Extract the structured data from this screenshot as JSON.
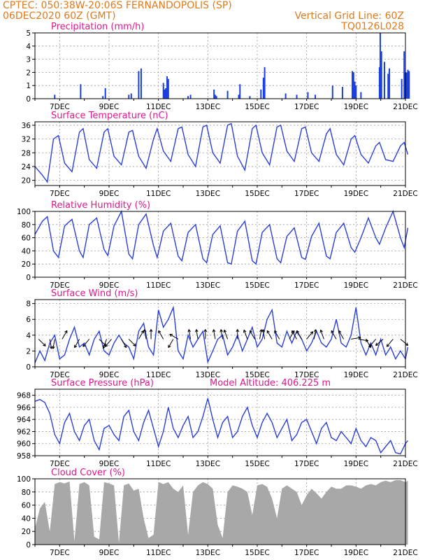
{
  "header": {
    "line1": "CPTEC:   050:38W-20:06S   FERNANDOPOLIS (SP)",
    "line2_left": "06DEC2020 60Z (GMT)",
    "line2_right": "Vertical Grid Line: 60Z",
    "line3_right": "TQ0126L028"
  },
  "x_axis": {
    "start_day": 6,
    "end_day": 21,
    "tick_labels": [
      "7DEC",
      "9DEC",
      "11DEC",
      "13DEC",
      "15DEC",
      "17DEC",
      "19DEC",
      "21DEC"
    ],
    "tick_days": [
      7,
      9,
      11,
      13,
      15,
      17,
      19,
      21
    ]
  },
  "colors": {
    "line": "#2b3fd6",
    "bar": "#1a3fe0",
    "cloud": "#a8a8a8",
    "title": "#e0188c",
    "header": "#e07a1c"
  },
  "chart_data": [
    {
      "key": "precip",
      "type": "bar",
      "title": "Precipitation (mm/h)",
      "ylim": [
        0,
        5
      ],
      "yticks": [
        0,
        1,
        2,
        3,
        4,
        5
      ],
      "grid": true,
      "x_day": [
        6.8,
        7.85,
        8.75,
        8.85,
        9.8,
        9.9,
        10.2,
        10.3,
        11.2,
        11.25,
        11.3,
        11.35,
        11.4,
        12.2,
        12.3,
        13.25,
        13.3,
        13.35,
        13.8,
        14.25,
        14.3,
        14.7,
        15.15,
        15.25,
        15.3,
        16.15,
        16.6,
        17.05,
        17.35,
        18.05,
        18.45,
        18.85,
        18.9,
        18.95,
        19.0,
        19.2,
        19.95,
        19.98,
        20.03,
        20.15,
        20.3,
        20.35,
        20.85,
        20.95,
        21.0,
        21.05,
        21.1,
        21.15
      ],
      "values": [
        0.3,
        1.1,
        0.2,
        0.8,
        0.3,
        0.4,
        2.1,
        2.3,
        1.2,
        0.7,
        0.8,
        1.7,
        1.5,
        0.2,
        0.3,
        0.7,
        0.3,
        0.2,
        0.6,
        0.3,
        1.1,
        0.2,
        0.7,
        1.6,
        2.4,
        0.4,
        0.3,
        0.5,
        0.3,
        1.0,
        0.9,
        2.1,
        2.0,
        1.3,
        1.0,
        0.5,
        2.4,
        5.0,
        3.6,
        2.8,
        1.9,
        2.3,
        1.5,
        3.6,
        2.0,
        2.0,
        2.2,
        2.1
      ]
    },
    {
      "key": "temp",
      "type": "line",
      "title": "Surface Temperature (nC)",
      "ylim": [
        18.5,
        37
      ],
      "yticks": [
        20,
        24,
        28,
        32,
        36
      ],
      "grid": true,
      "x_day": [
        6.0,
        6.3,
        6.5,
        6.75,
        6.95,
        7.2,
        7.5,
        7.8,
        7.95,
        8.2,
        8.5,
        8.8,
        8.95,
        9.2,
        9.5,
        9.8,
        9.95,
        10.2,
        10.5,
        10.8,
        10.95,
        11.2,
        11.5,
        11.8,
        11.95,
        12.2,
        12.5,
        12.8,
        12.95,
        13.2,
        13.5,
        13.8,
        13.95,
        14.2,
        14.5,
        14.8,
        14.95,
        15.2,
        15.5,
        15.8,
        15.95,
        16.2,
        16.5,
        16.8,
        16.95,
        17.2,
        17.5,
        17.8,
        17.95,
        18.2,
        18.5,
        18.8,
        18.95,
        19.2,
        19.5,
        19.8,
        19.95,
        20.2,
        20.5,
        20.8,
        20.95,
        21.1
      ],
      "values": [
        24.0,
        21.5,
        19.5,
        32.0,
        33.0,
        25.0,
        22.5,
        34.0,
        35.0,
        26.0,
        23.5,
        34.0,
        35.0,
        27.0,
        24.5,
        34.0,
        34.5,
        27.0,
        23.5,
        32.0,
        35.0,
        28.5,
        25.5,
        35.0,
        35.5,
        27.5,
        24.0,
        35.5,
        36.0,
        28.0,
        25.0,
        36.0,
        36.5,
        27.0,
        23.0,
        35.0,
        36.0,
        28.0,
        24.5,
        35.5,
        36.0,
        28.5,
        25.5,
        35.0,
        35.5,
        28.0,
        25.5,
        33.5,
        35.0,
        27.5,
        24.5,
        32.0,
        33.0,
        27.5,
        25.0,
        30.0,
        31.0,
        26.0,
        25.5,
        30.0,
        31.0,
        27.5
      ]
    },
    {
      "key": "rh",
      "type": "line",
      "title": "Relative Humidity (%)",
      "ylim": [
        0,
        100
      ],
      "yticks": [
        0,
        20,
        40,
        60,
        80,
        100
      ],
      "grid": true,
      "x_day": [
        6.0,
        6.3,
        6.5,
        6.75,
        6.95,
        7.2,
        7.5,
        7.8,
        7.95,
        8.2,
        8.5,
        8.8,
        8.95,
        9.2,
        9.5,
        9.8,
        9.95,
        10.2,
        10.5,
        10.8,
        10.95,
        11.2,
        11.5,
        11.8,
        11.95,
        12.2,
        12.5,
        12.8,
        12.95,
        13.2,
        13.5,
        13.8,
        13.95,
        14.2,
        14.5,
        14.8,
        14.95,
        15.2,
        15.5,
        15.8,
        15.95,
        16.2,
        16.5,
        16.8,
        16.95,
        17.2,
        17.5,
        17.8,
        17.95,
        18.2,
        18.5,
        18.8,
        18.95,
        19.2,
        19.5,
        19.8,
        19.95,
        20.2,
        20.5,
        20.8,
        20.95,
        21.1
      ],
      "values": [
        65.0,
        85.0,
        92.0,
        40.0,
        30.0,
        78.0,
        88.0,
        40.0,
        30.0,
        80.0,
        90.0,
        42.0,
        33.0,
        78.0,
        100.0,
        35.0,
        28.0,
        80.0,
        96.0,
        48.0,
        30.0,
        70.0,
        82.0,
        32.0,
        25.0,
        68.0,
        80.0,
        28.0,
        22.0,
        65.0,
        78.0,
        22.0,
        20.0,
        70.0,
        85.0,
        25.0,
        20.0,
        68.0,
        80.0,
        28.0,
        22.0,
        62.0,
        75.0,
        30.0,
        27.0,
        62.0,
        82.0,
        32.0,
        28.0,
        68.0,
        82.0,
        45.0,
        38.0,
        60.0,
        90.0,
        60.0,
        50.0,
        75.0,
        100.0,
        60.0,
        45.0,
        75.0
      ]
    },
    {
      "key": "wind",
      "type": "line",
      "title": "Surface Wind (m/s)",
      "ylim": [
        0,
        8.5
      ],
      "yticks": [
        0,
        2,
        4,
        6,
        8
      ],
      "grid": true,
      "x_day": [
        6.0,
        6.2,
        6.4,
        6.6,
        6.8,
        7.0,
        7.2,
        7.4,
        7.6,
        7.8,
        8.0,
        8.2,
        8.4,
        8.6,
        8.8,
        9.0,
        9.2,
        9.4,
        9.6,
        9.8,
        10.0,
        10.2,
        10.4,
        10.6,
        10.8,
        11.0,
        11.2,
        11.4,
        11.6,
        11.8,
        12.0,
        12.2,
        12.4,
        12.6,
        12.8,
        13.0,
        13.2,
        13.4,
        13.6,
        13.8,
        14.0,
        14.2,
        14.4,
        14.6,
        14.8,
        15.0,
        15.2,
        15.4,
        15.6,
        15.8,
        16.0,
        16.2,
        16.4,
        16.6,
        16.8,
        17.0,
        17.2,
        17.4,
        17.6,
        17.8,
        18.0,
        18.2,
        18.4,
        18.6,
        18.8,
        19.0,
        19.2,
        19.4,
        19.6,
        19.8,
        20.0,
        20.2,
        20.4,
        20.6,
        20.8,
        21.0,
        21.1
      ],
      "values": [
        0.5,
        2.0,
        0.8,
        3.0,
        4.0,
        1.0,
        1.5,
        3.5,
        5.0,
        2.5,
        3.0,
        1.5,
        3.5,
        4.5,
        2.0,
        1.5,
        3.0,
        4.0,
        3.0,
        2.5,
        1.0,
        4.5,
        5.5,
        2.5,
        1.5,
        7.2,
        5.0,
        6.0,
        7.5,
        2.0,
        1.0,
        4.0,
        2.5,
        3.5,
        4.5,
        0.6,
        2.0,
        3.5,
        4.0,
        1.5,
        2.5,
        4.0,
        2.0,
        3.5,
        5.0,
        2.5,
        3.5,
        6.0,
        7.2,
        3.0,
        2.5,
        4.5,
        3.0,
        4.5,
        3.5,
        2.0,
        3.0,
        4.5,
        3.0,
        2.5,
        3.5,
        6.0,
        3.0,
        2.5,
        4.0,
        7.5,
        3.0,
        1.5,
        3.0,
        1.5,
        3.5,
        1.5,
        2.5,
        1.0,
        2.0,
        1.0,
        2.5
      ]
    },
    {
      "key": "pressure",
      "type": "line",
      "title": "Surface Pressure (hPa)",
      "annotation": "Model Altitude: 406.225 m",
      "ylim": [
        958,
        969
      ],
      "yticks": [
        958,
        960,
        962,
        964,
        966,
        968
      ],
      "grid": true,
      "x_day": [
        6.0,
        6.2,
        6.4,
        6.6,
        6.8,
        7.0,
        7.2,
        7.4,
        7.6,
        7.8,
        8.0,
        8.2,
        8.4,
        8.6,
        8.8,
        9.0,
        9.2,
        9.4,
        9.6,
        9.8,
        10.0,
        10.2,
        10.4,
        10.6,
        10.8,
        11.0,
        11.2,
        11.4,
        11.6,
        11.8,
        12.0,
        12.2,
        12.4,
        12.6,
        12.8,
        13.0,
        13.2,
        13.4,
        13.6,
        13.8,
        14.0,
        14.2,
        14.4,
        14.6,
        14.8,
        15.0,
        15.2,
        15.4,
        15.6,
        15.8,
        16.0,
        16.2,
        16.4,
        16.6,
        16.8,
        17.0,
        17.2,
        17.4,
        17.6,
        17.8,
        18.0,
        18.2,
        18.4,
        18.6,
        18.8,
        19.0,
        19.2,
        19.4,
        19.6,
        19.8,
        20.0,
        20.2,
        20.4,
        20.6,
        20.8,
        21.0,
        21.1
      ],
      "values": [
        967.0,
        967.3,
        966.8,
        965.0,
        961.5,
        960.0,
        963.5,
        965.0,
        962.0,
        960.5,
        963.0,
        964.0,
        960.5,
        959.0,
        962.5,
        963.0,
        961.5,
        960.5,
        964.5,
        965.5,
        962.0,
        960.5,
        963.5,
        965.5,
        962.5,
        959.5,
        962.0,
        966.0,
        962.5,
        961.0,
        963.0,
        964.5,
        961.0,
        962.0,
        964.5,
        967.5,
        964.0,
        961.0,
        963.5,
        964.5,
        961.0,
        962.0,
        964.5,
        966.0,
        963.0,
        961.0,
        963.5,
        965.0,
        963.5,
        961.0,
        962.5,
        964.0,
        960.5,
        961.5,
        963.5,
        964.0,
        962.0,
        960.0,
        962.5,
        963.5,
        961.0,
        960.5,
        962.0,
        961.0,
        960.0,
        962.5,
        960.5,
        959.5,
        961.0,
        960.5,
        958.5,
        959.5,
        960.5,
        958.5,
        958.3,
        960.0,
        960.5
      ]
    },
    {
      "key": "cloud",
      "type": "area",
      "title": "Cloud Cover (%)",
      "ylim": [
        0,
        100
      ],
      "yticks": [
        0,
        20,
        40,
        60,
        80,
        100
      ],
      "grid": true,
      "x_day": [
        6.0,
        6.2,
        6.4,
        6.6,
        6.8,
        7.0,
        7.2,
        7.4,
        7.6,
        7.8,
        8.0,
        8.2,
        8.4,
        8.6,
        8.8,
        9.0,
        9.2,
        9.4,
        9.6,
        9.8,
        10.0,
        10.2,
        10.4,
        10.6,
        10.8,
        11.0,
        11.2,
        11.4,
        11.6,
        11.8,
        12.0,
        12.2,
        12.4,
        12.6,
        12.8,
        13.0,
        13.2,
        13.4,
        13.6,
        13.8,
        14.0,
        14.2,
        14.4,
        14.6,
        14.8,
        15.0,
        15.2,
        15.4,
        15.6,
        15.8,
        16.0,
        16.2,
        16.4,
        16.6,
        16.8,
        17.0,
        17.2,
        17.4,
        17.6,
        17.8,
        18.0,
        18.2,
        18.4,
        18.6,
        18.8,
        19.0,
        19.2,
        19.4,
        19.6,
        19.8,
        20.0,
        20.2,
        20.4,
        20.6,
        20.8,
        21.0,
        21.1
      ],
      "values": [
        25.0,
        55.0,
        65.0,
        20.0,
        92.0,
        95.0,
        93.0,
        96.0,
        5.0,
        92.0,
        95.0,
        90.0,
        12.0,
        8.0,
        95.0,
        93.0,
        90.0,
        3.0,
        90.0,
        93.0,
        82.0,
        85.0,
        40.0,
        10.0,
        15.0,
        95.0,
        92.0,
        95.0,
        85.0,
        80.0,
        90.0,
        15.0,
        80.0,
        90.0,
        95.0,
        92.0,
        85.0,
        30.0,
        10.0,
        80.0,
        90.0,
        88.0,
        85.0,
        80.0,
        45.0,
        90.0,
        92.0,
        88.0,
        70.0,
        40.0,
        85.0,
        90.0,
        85.0,
        80.0,
        60.0,
        75.0,
        85.0,
        78.0,
        70.0,
        80.0,
        88.0,
        85.0,
        85.0,
        90.0,
        90.0,
        88.0,
        85.0,
        90.0,
        92.0,
        90.0,
        95.0,
        97.0,
        95.0,
        98.0,
        98.0,
        95.0,
        97.0
      ]
    }
  ],
  "wind_arrows": {
    "x_day": [
      6.15,
      6.6,
      6.8,
      7.1,
      7.8,
      8.2,
      8.6,
      8.9,
      9.1,
      9.5,
      9.8,
      10.2,
      10.5,
      10.7,
      11.2,
      11.6,
      11.8,
      12.3,
      12.6,
      12.9,
      13.3,
      13.6,
      13.8,
      14.2,
      14.6,
      14.9,
      15.1,
      15.3,
      15.6,
      15.9,
      16.3,
      16.6,
      16.8,
      17.0,
      17.3,
      17.7,
      18.2,
      18.5,
      18.8,
      19.1,
      19.4,
      19.8,
      20.1,
      20.5,
      20.8
    ],
    "dir_deg": [
      45,
      80,
      100,
      300,
      120,
      130,
      45,
      110,
      130,
      60,
      45,
      300,
      260,
      270,
      240,
      120,
      210,
      260,
      260,
      270,
      260,
      260,
      250,
      270,
      250,
      240,
      280,
      260,
      240,
      240,
      300,
      240,
      240,
      310,
      280,
      250,
      240,
      240,
      350,
      10,
      60,
      130,
      140,
      130,
      40
    ]
  }
}
